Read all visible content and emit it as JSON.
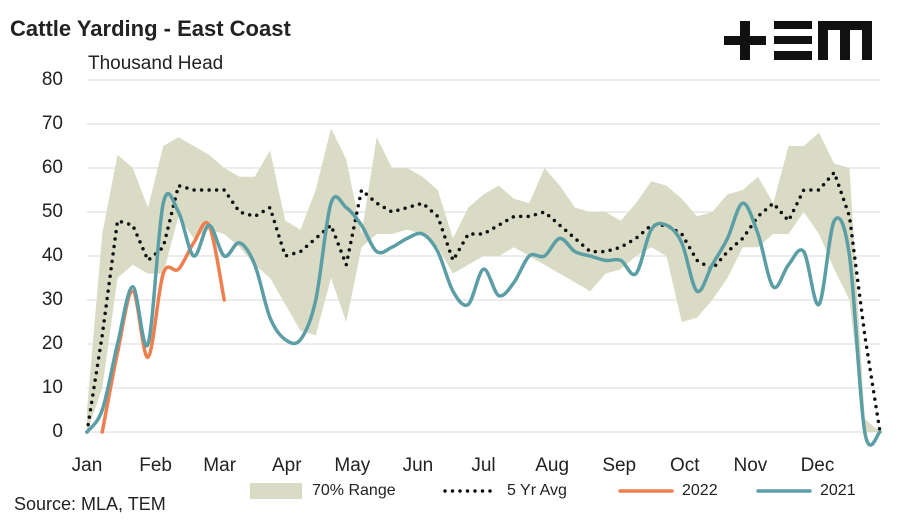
{
  "chart_data": {
    "type": "line",
    "title": "Cattle Yarding - East Coast",
    "subtitle": "Thousand Head",
    "source": "Source: MLA, TEM",
    "x": [
      1,
      2,
      3,
      4,
      5,
      6,
      7,
      8,
      9,
      10,
      11,
      12,
      13,
      14,
      15,
      16,
      17,
      18,
      19,
      20,
      21,
      22,
      23,
      24,
      25,
      26,
      27,
      28,
      29,
      30,
      31,
      32,
      33,
      34,
      35,
      36,
      37,
      38,
      39,
      40,
      41,
      42,
      43,
      44,
      45,
      46,
      47,
      48,
      49,
      50,
      51,
      52,
      53
    ],
    "xlim": [
      1,
      53
    ],
    "xticks": [
      {
        "value": 1,
        "label": "Jan"
      },
      {
        "value": 5.5,
        "label": "Feb"
      },
      {
        "value": 9.7,
        "label": "Mar"
      },
      {
        "value": 14.1,
        "label": "Apr"
      },
      {
        "value": 18.4,
        "label": "May"
      },
      {
        "value": 22.7,
        "label": "Jun"
      },
      {
        "value": 27,
        "label": "Jul"
      },
      {
        "value": 31.5,
        "label": "Aug"
      },
      {
        "value": 35.9,
        "label": "Sep"
      },
      {
        "value": 40.2,
        "label": "Oct"
      },
      {
        "value": 44.5,
        "label": "Nov"
      },
      {
        "value": 48.9,
        "label": "Dec"
      }
    ],
    "ylim": [
      0,
      80
    ],
    "yticks": [
      0,
      10,
      20,
      30,
      40,
      50,
      60,
      70,
      80
    ],
    "grid": true,
    "legend": "bottom",
    "series": [
      {
        "name": "70% Range",
        "color": "#d9dbc4",
        "style": "band",
        "low": [
          0,
          10,
          35,
          38,
          36,
          36,
          49,
          44,
          46,
          45,
          42,
          38,
          35,
          29,
          23,
          22,
          35,
          25,
          42,
          45,
          45,
          46,
          45,
          42,
          36,
          38,
          40,
          40,
          42,
          40,
          38,
          36,
          34,
          32,
          36,
          37,
          40,
          42,
          40,
          25,
          26,
          30,
          35,
          42,
          42,
          45,
          45,
          50,
          45,
          37,
          30,
          0,
          0
        ],
        "high": [
          5,
          45,
          63,
          60,
          51,
          65,
          67,
          65,
          63,
          60,
          58,
          58,
          64,
          48,
          46,
          55,
          69,
          62,
          45,
          67,
          60,
          60,
          58,
          55,
          44,
          51,
          54,
          56,
          53,
          52,
          60,
          56,
          51,
          50,
          50,
          48,
          52,
          57,
          56,
          53,
          49,
          50,
          54,
          55,
          58,
          52,
          65,
          65,
          68,
          61,
          60,
          3,
          0
        ]
      },
      {
        "name": "5 Yr Avg",
        "color": "#111111",
        "style": "dotted",
        "values": [
          0,
          22,
          48,
          47,
          39,
          42,
          56,
          55,
          55,
          55,
          50,
          49,
          51,
          40,
          41,
          44,
          47,
          38,
          55,
          52,
          50,
          51,
          52,
          49,
          39,
          45,
          45,
          47,
          49,
          49,
          50,
          47,
          44,
          41,
          41,
          42,
          44,
          47,
          47,
          45,
          39,
          37,
          41,
          44,
          49,
          52,
          48,
          55,
          55,
          59,
          49,
          22,
          0
        ]
      },
      {
        "name": "2022",
        "color": "#f07f4f",
        "style": "solid",
        "values": [
          null,
          0,
          18,
          32,
          17,
          36,
          37,
          43,
          47,
          30,
          null,
          null,
          null,
          null,
          null,
          null,
          null,
          null,
          null,
          null,
          null,
          null,
          null,
          null,
          null,
          null,
          null,
          null,
          null,
          null,
          null,
          null,
          null,
          null,
          null,
          null,
          null,
          null,
          null,
          null,
          null,
          null,
          null,
          null,
          null,
          null,
          null,
          null,
          null,
          null,
          null,
          null,
          null
        ]
      },
      {
        "name": "2021",
        "color": "#5b9ea6",
        "style": "solid",
        "values": [
          0,
          5,
          20,
          33,
          20,
          52,
          50,
          40,
          47,
          40,
          43,
          38,
          26,
          21,
          21,
          30,
          52,
          51,
          47,
          41,
          42,
          44,
          45,
          41,
          32,
          29,
          37,
          31,
          34,
          40,
          40,
          44,
          41,
          40,
          39,
          39,
          36,
          46,
          47,
          43,
          32,
          38,
          44,
          52,
          45,
          33,
          38,
          41,
          29,
          48,
          40,
          0,
          0
        ]
      }
    ]
  }
}
